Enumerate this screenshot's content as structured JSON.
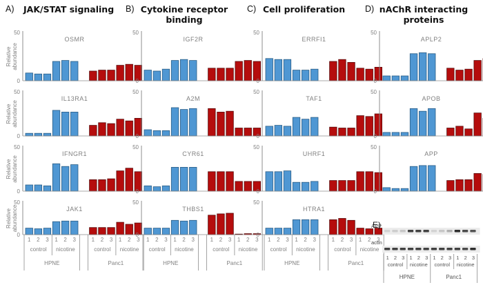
{
  "colors": {
    "hpne": "#4f97d3",
    "hpne_edge": "#2a5d86",
    "panc1": "#b50d0d",
    "panc1_edge": "#5a0a0a",
    "axis": "#8c8c8c",
    "text": "#808080"
  },
  "columns": [
    {
      "letter": "A)",
      "title": "JAK/STAT signaling"
    },
    {
      "letter": "B)",
      "title": "Cytokine receptor binding"
    },
    {
      "letter": "C)",
      "title": "Cell proliferation"
    },
    {
      "letter": "D)",
      "title": "nAChR interacting proteins"
    }
  ],
  "chart_data": [
    {
      "type": "bar",
      "panel": "A",
      "title": "OSMR",
      "ylabel": "Relative abundance",
      "ylim": [
        0,
        50
      ],
      "yticks": [
        0,
        50
      ],
      "series": [
        {
          "name": "HPNE",
          "values": [
            8,
            7,
            7,
            20,
            21,
            20
          ]
        },
        {
          "name": "Panc1",
          "values": [
            10,
            11,
            11,
            16,
            17,
            16
          ]
        }
      ]
    },
    {
      "type": "bar",
      "panel": "A",
      "title": "IL13RA1",
      "ylabel": "Relative abundance",
      "ylim": [
        0,
        50
      ],
      "yticks": [
        0,
        50
      ],
      "series": [
        {
          "name": "HPNE",
          "values": [
            3,
            3,
            3,
            29,
            27,
            27
          ]
        },
        {
          "name": "Panc1",
          "values": [
            12,
            15,
            14,
            19,
            17,
            20
          ]
        }
      ]
    },
    {
      "type": "bar",
      "panel": "A",
      "title": "IFNGR1",
      "ylabel": "Relative abundance",
      "ylim": [
        0,
        50
      ],
      "yticks": [
        0,
        50
      ],
      "series": [
        {
          "name": "HPNE",
          "values": [
            7,
            7,
            6,
            31,
            28,
            30
          ]
        },
        {
          "name": "Panc1",
          "values": [
            13,
            13,
            14,
            23,
            26,
            22
          ]
        }
      ]
    },
    {
      "type": "bar",
      "panel": "A",
      "title": "JAK1",
      "ylabel": "Relative abundance",
      "ylim": [
        0,
        50
      ],
      "yticks": [
        0,
        50
      ],
      "series": [
        {
          "name": "HPNE",
          "values": [
            10,
            9,
            10,
            20,
            21,
            21
          ]
        },
        {
          "name": "Panc1",
          "values": [
            11,
            11,
            11,
            19,
            16,
            18
          ]
        }
      ]
    },
    {
      "type": "bar",
      "panel": "B",
      "title": "IGF2R",
      "ylabel": "",
      "ylim": [
        0,
        50
      ],
      "yticks": [
        0,
        50
      ],
      "series": [
        {
          "name": "HPNE",
          "values": [
            11,
            10,
            12,
            21,
            22,
            21
          ]
        },
        {
          "name": "Panc1",
          "values": [
            13,
            13,
            13,
            20,
            21,
            20
          ]
        }
      ]
    },
    {
      "type": "bar",
      "panel": "B",
      "title": "A2M",
      "ylabel": "",
      "ylim": [
        0,
        50
      ],
      "yticks": [
        0,
        50
      ],
      "series": [
        {
          "name": "HPNE",
          "values": [
            7,
            6,
            6,
            32,
            30,
            31
          ]
        },
        {
          "name": "Panc1",
          "values": [
            31,
            27,
            28,
            9,
            9,
            9
          ]
        }
      ]
    },
    {
      "type": "bar",
      "panel": "B",
      "title": "CYR61",
      "ylabel": "",
      "ylim": [
        0,
        50
      ],
      "yticks": [
        0,
        50
      ],
      "series": [
        {
          "name": "HPNE",
          "values": [
            6,
            5,
            6,
            27,
            27,
            27
          ]
        },
        {
          "name": "Panc1",
          "values": [
            22,
            22,
            22,
            11,
            11,
            11
          ]
        }
      ]
    },
    {
      "type": "bar",
      "panel": "B",
      "title": "THBS1",
      "ylabel": "",
      "ylim": [
        0,
        50
      ],
      "yticks": [
        0,
        50
      ],
      "series": [
        {
          "name": "HPNE",
          "values": [
            10,
            10,
            10,
            22,
            21,
            22
          ]
        },
        {
          "name": "Panc1",
          "values": [
            30,
            32,
            33,
            0.3,
            1.5,
            1.5
          ]
        }
      ]
    },
    {
      "type": "bar",
      "panel": "C",
      "title": "ERRFI1",
      "ylabel": "",
      "ylim": [
        0,
        50
      ],
      "yticks": [
        0,
        50
      ],
      "series": [
        {
          "name": "HPNE",
          "values": [
            23,
            22,
            22,
            11,
            11,
            12
          ]
        },
        {
          "name": "Panc1",
          "values": [
            20,
            22,
            19,
            13,
            12,
            14
          ]
        }
      ]
    },
    {
      "type": "bar",
      "panel": "C",
      "title": "TAF1",
      "ylabel": "",
      "ylim": [
        0,
        50
      ],
      "yticks": [
        0,
        50
      ],
      "series": [
        {
          "name": "HPNE",
          "values": [
            11,
            12,
            11,
            21,
            19,
            21
          ]
        },
        {
          "name": "Panc1",
          "values": [
            10,
            9,
            9,
            23,
            22,
            25
          ]
        }
      ]
    },
    {
      "type": "bar",
      "panel": "C",
      "title": "UHRF1",
      "ylabel": "",
      "ylim": [
        0,
        50
      ],
      "yticks": [
        0,
        50
      ],
      "series": [
        {
          "name": "HPNE",
          "values": [
            22,
            22,
            23,
            10,
            10,
            11
          ]
        },
        {
          "name": "Panc1",
          "values": [
            12,
            12,
            12,
            22,
            22,
            21
          ]
        }
      ]
    },
    {
      "type": "bar",
      "panel": "C",
      "title": "HTRA1",
      "ylabel": "",
      "ylim": [
        0,
        50
      ],
      "yticks": [
        0,
        50
      ],
      "series": [
        {
          "name": "HPNE",
          "values": [
            10,
            10,
            10,
            23,
            23,
            23
          ]
        },
        {
          "name": "Panc1",
          "values": [
            23,
            25,
            22,
            10,
            9,
            10
          ]
        }
      ]
    },
    {
      "type": "bar",
      "panel": "D",
      "title": "APLP2",
      "ylabel": "",
      "ylim": [
        0,
        50
      ],
      "yticks": [
        0,
        50
      ],
      "series": [
        {
          "name": "HPNE",
          "values": [
            5,
            5,
            5,
            28,
            29,
            28
          ]
        },
        {
          "name": "Panc1",
          "values": [
            13,
            11,
            12,
            21,
            23,
            21
          ]
        }
      ]
    },
    {
      "type": "bar",
      "panel": "D",
      "title": "APOB",
      "ylabel": "",
      "ylim": [
        0,
        50
      ],
      "yticks": [
        0,
        50
      ],
      "series": [
        {
          "name": "HPNE",
          "values": [
            4,
            4,
            4,
            31,
            28,
            31
          ]
        },
        {
          "name": "Panc1",
          "values": [
            9,
            11,
            8,
            26,
            20,
            25
          ]
        }
      ]
    },
    {
      "type": "bar",
      "panel": "D",
      "title": "APP",
      "ylabel": "",
      "ylim": [
        0,
        50
      ],
      "yticks": [
        0,
        50
      ],
      "series": [
        {
          "name": "HPNE",
          "values": [
            4,
            3,
            3,
            28,
            29,
            29
          ]
        },
        {
          "name": "Panc1",
          "values": [
            12,
            13,
            13,
            20,
            19,
            19
          ]
        }
      ]
    }
  ],
  "xaxis": {
    "replicates": [
      "1",
      "2",
      "3"
    ],
    "conditions": [
      "control",
      "nicotine"
    ],
    "cell_lines": [
      "HPNE",
      "Panc1"
    ]
  },
  "blot": {
    "letter": "E)",
    "rows": [
      {
        "label": "APP",
        "intensities": [
          0.12,
          0.15,
          0.18,
          0.85,
          0.85,
          0.85,
          0.12,
          0.18,
          0.3,
          0.95,
          0.8,
          0.75
        ]
      },
      {
        "label": "actin",
        "intensities": [
          0.85,
          0.85,
          0.85,
          0.85,
          0.85,
          0.85,
          0.85,
          0.85,
          0.85,
          0.85,
          0.8,
          0.95
        ]
      }
    ]
  }
}
